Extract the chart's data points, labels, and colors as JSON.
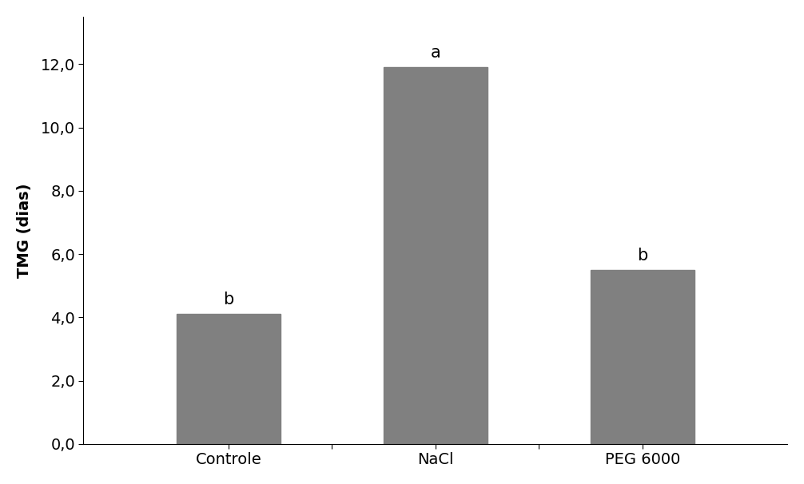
{
  "categories": [
    "Controle",
    "NaCl",
    "PEG 6000"
  ],
  "values": [
    4.1,
    11.9,
    5.5
  ],
  "labels": [
    "b",
    "a",
    "b"
  ],
  "bar_color": "#808080",
  "bar_width": 0.5,
  "ylabel": "TMG (dias)",
  "ylim": [
    0,
    13.5
  ],
  "yticks": [
    0.0,
    2.0,
    4.0,
    6.0,
    8.0,
    10.0,
    12.0
  ],
  "ytick_labels": [
    "0,0",
    "2,0",
    "4,0",
    "6,0",
    "8,0",
    "10,0",
    "12,0"
  ],
  "background_color": "#ffffff",
  "tick_fontsize": 14,
  "ylabel_fontsize": 14,
  "annotation_fontsize": 15,
  "xtick_fontsize": 14,
  "figsize": [
    10.06,
    6.06
  ],
  "dpi": 100
}
